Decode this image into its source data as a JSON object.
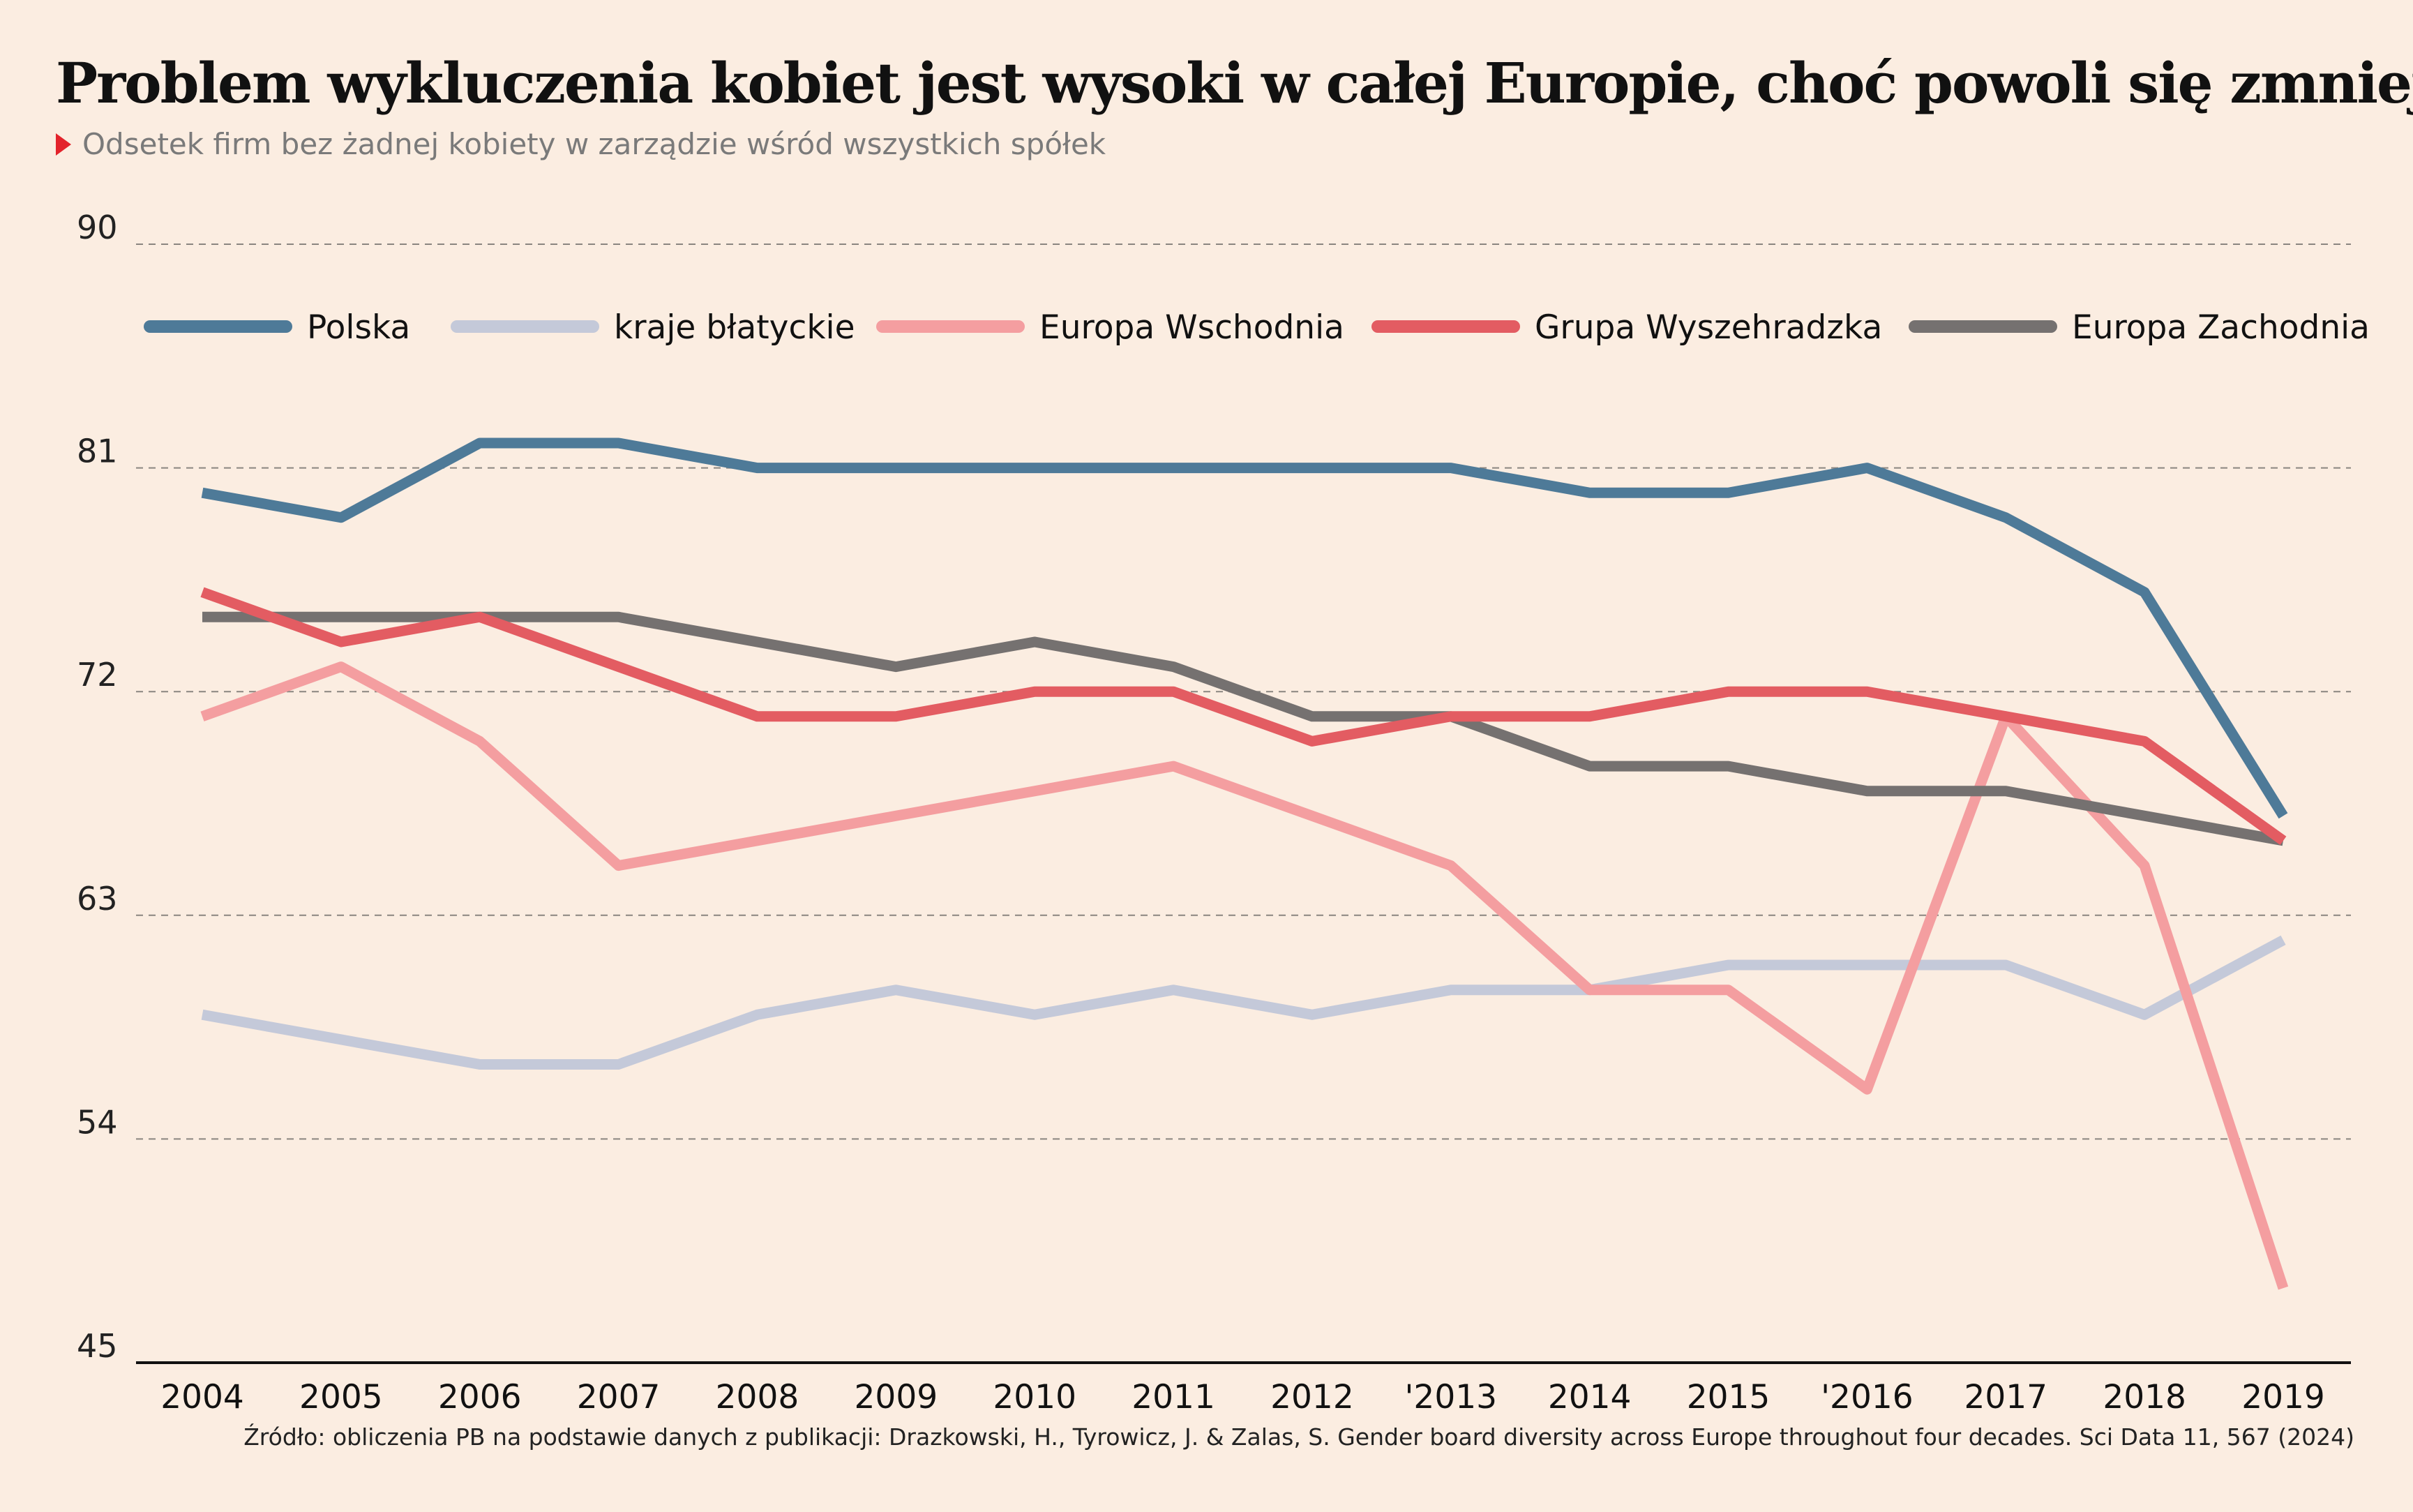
{
  "title": "Problem wykluczenia kobiet jest wysoki w całej Europie, choć powoli się zmniejsza",
  "subtitle": "Odsetek firm bez żadnej kobiety w zarządzie wśród wszystkich spółek",
  "source": "Źródło: obliczenia PB na podstawie danych z publikacji: Drazkowski, H., Tyrowicz, J. & Zalas, S. Gender board diversity across Europe throughout four decades. Sci Data 11, 567 (2024)",
  "colors": {
    "background": "#fbede1",
    "accent": "#e3232b"
  },
  "chart_data": {
    "type": "line",
    "x": [
      "2004",
      "2005",
      "2006",
      "2007",
      "2008",
      "2009",
      "2010",
      "2011",
      "2012",
      "'2013",
      "2014",
      "2015",
      "'2016",
      "2017",
      "2018",
      "2019"
    ],
    "yticks": [
      90,
      81,
      72,
      63,
      54,
      45
    ],
    "ylim": [
      45,
      90
    ],
    "grid": true,
    "legend_position": "top",
    "series": [
      {
        "name": "Polska",
        "color": "#4e7a98",
        "values": [
          80,
          79,
          82,
          82,
          81,
          81,
          81,
          81,
          81,
          81,
          80,
          80,
          81,
          79,
          76,
          67
        ]
      },
      {
        "name": "kraje błatyckie",
        "color": "#c4c9d9",
        "values": [
          59,
          58,
          57,
          57,
          59,
          60,
          59,
          60,
          59,
          60,
          60,
          61,
          61,
          61,
          59,
          62
        ]
      },
      {
        "name": "Europa Wschodnia",
        "color": "#f49ea0",
        "values": [
          71,
          73,
          70,
          65,
          66,
          67,
          68,
          69,
          67,
          65,
          60,
          60,
          56,
          71,
          65,
          48
        ]
      },
      {
        "name": "Grupa Wyszehradzka",
        "color": "#e35c62",
        "values": [
          76,
          74,
          75,
          73,
          71,
          71,
          72,
          72,
          70,
          71,
          71,
          72,
          72,
          71,
          70,
          66
        ]
      },
      {
        "name": "Europa Zachodnia",
        "color": "#757170",
        "values": [
          75,
          75,
          75,
          75,
          74,
          73,
          74,
          73,
          71,
          71,
          69,
          69,
          68,
          68,
          67,
          66
        ]
      }
    ]
  }
}
